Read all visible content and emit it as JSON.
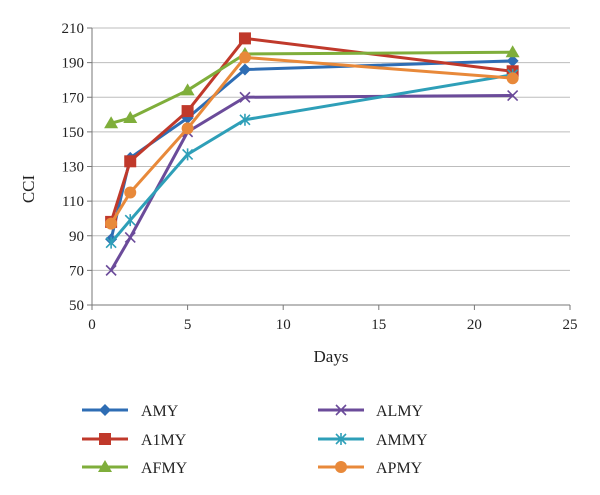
{
  "chart_data": {
    "type": "line",
    "xlabel": "Days",
    "ylabel": "CCI",
    "xlim": [
      0,
      25
    ],
    "ylim": [
      50,
      210
    ],
    "xticks": [
      0,
      5,
      10,
      15,
      20,
      25
    ],
    "yticks": [
      50,
      70,
      90,
      110,
      130,
      150,
      170,
      190,
      210
    ],
    "grid": "horizontal",
    "legend_position": "bottom",
    "series": [
      {
        "name": "AMY",
        "color": "#2e6db4",
        "marker": "diamond",
        "x": [
          1,
          2,
          5,
          8,
          22
        ],
        "y": [
          88,
          135,
          158,
          186,
          191
        ]
      },
      {
        "name": "A1MY",
        "color": "#c0392b",
        "marker": "square",
        "x": [
          1,
          2,
          5,
          8,
          22
        ],
        "y": [
          98,
          133,
          162,
          204,
          185
        ]
      },
      {
        "name": "AFMY",
        "color": "#7fae3b",
        "marker": "triangle",
        "x": [
          1,
          2,
          5,
          8,
          22
        ],
        "y": [
          155,
          158,
          174,
          195,
          196
        ]
      },
      {
        "name": "ALMY",
        "color": "#6b4b9a",
        "marker": "x",
        "x": [
          1,
          2,
          5,
          8,
          22
        ],
        "y": [
          70,
          89,
          150,
          170,
          171
        ]
      },
      {
        "name": "AMMY",
        "color": "#2e9fb8",
        "marker": "star",
        "x": [
          1,
          2,
          5,
          8,
          22
        ],
        "y": [
          86,
          99,
          137,
          157,
          183
        ]
      },
      {
        "name": "APMY",
        "color": "#e8893a",
        "marker": "circle",
        "x": [
          1,
          2,
          5,
          8,
          22
        ],
        "y": [
          97,
          115,
          152,
          193,
          181
        ]
      }
    ]
  }
}
